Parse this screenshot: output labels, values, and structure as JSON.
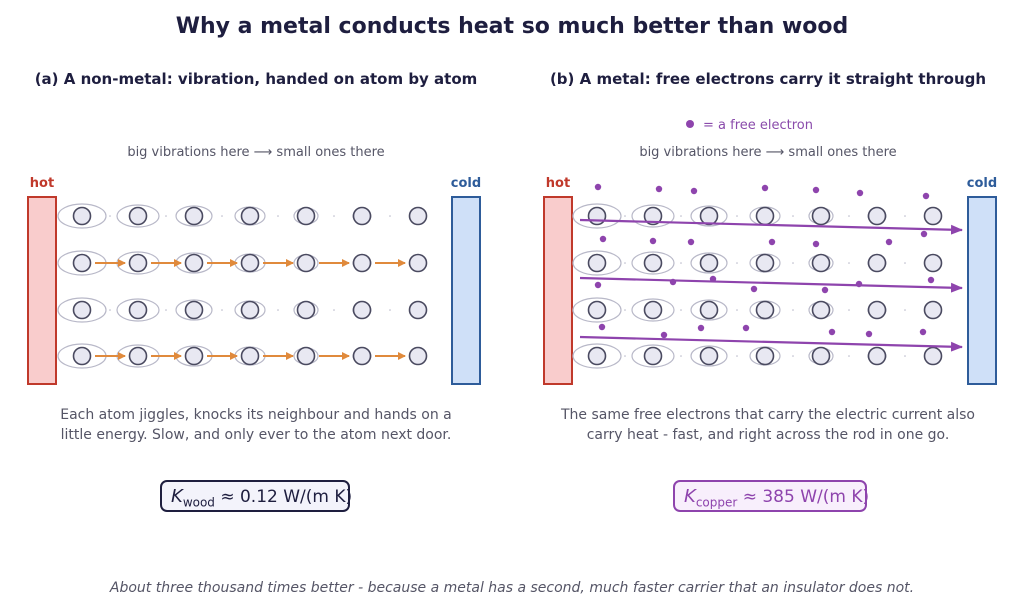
{
  "title": "Why a metal conducts heat so much better than wood",
  "panel_a": {
    "title": "(a) A non-metal: vibration, handed on atom by atom",
    "gradient_label": "big vibrations here  ⟶  small ones there",
    "hot_label": "hot",
    "cold_label": "cold",
    "caption_line1": "Each atom jiggles, knocks its neighbour and hands on a",
    "caption_line2": "little energy. Slow, and only ever to the atom next door.",
    "k_symbol": "K",
    "k_subscript": "wood",
    "k_value": "≈ 0.12 W/(m K)"
  },
  "panel_b": {
    "title": "(b) A metal: free electrons carry it straight through",
    "legend_label": "= a free electron",
    "gradient_label": "big vibrations here  ⟶  small ones there",
    "hot_label": "hot",
    "cold_label": "cold",
    "caption_line1": "The same free electrons that carry the electric current also",
    "caption_line2": "carry heat - fast, and right across the rod in one go.",
    "k_symbol": "K",
    "k_subscript": "copper",
    "k_value": "≈ 385 W/(m K)"
  },
  "footer": "About three thousand times better - because a metal has a second, much faster carrier that an insulator does not.",
  "colors": {
    "hot_fill": "#f9cccc",
    "hot_stroke": "#c0392b",
    "cold_fill": "#cfe0f8",
    "cold_stroke": "#2e5c9a",
    "atom_fill": "#e8e8f2",
    "atom_stroke": "#4a4a60",
    "vibration_halo": "#b8b8c8",
    "phonon_arrow": "#e08a3c",
    "electron": "#8e44ad",
    "title_text": "#1e1e3f",
    "body_text": "#555566"
  }
}
